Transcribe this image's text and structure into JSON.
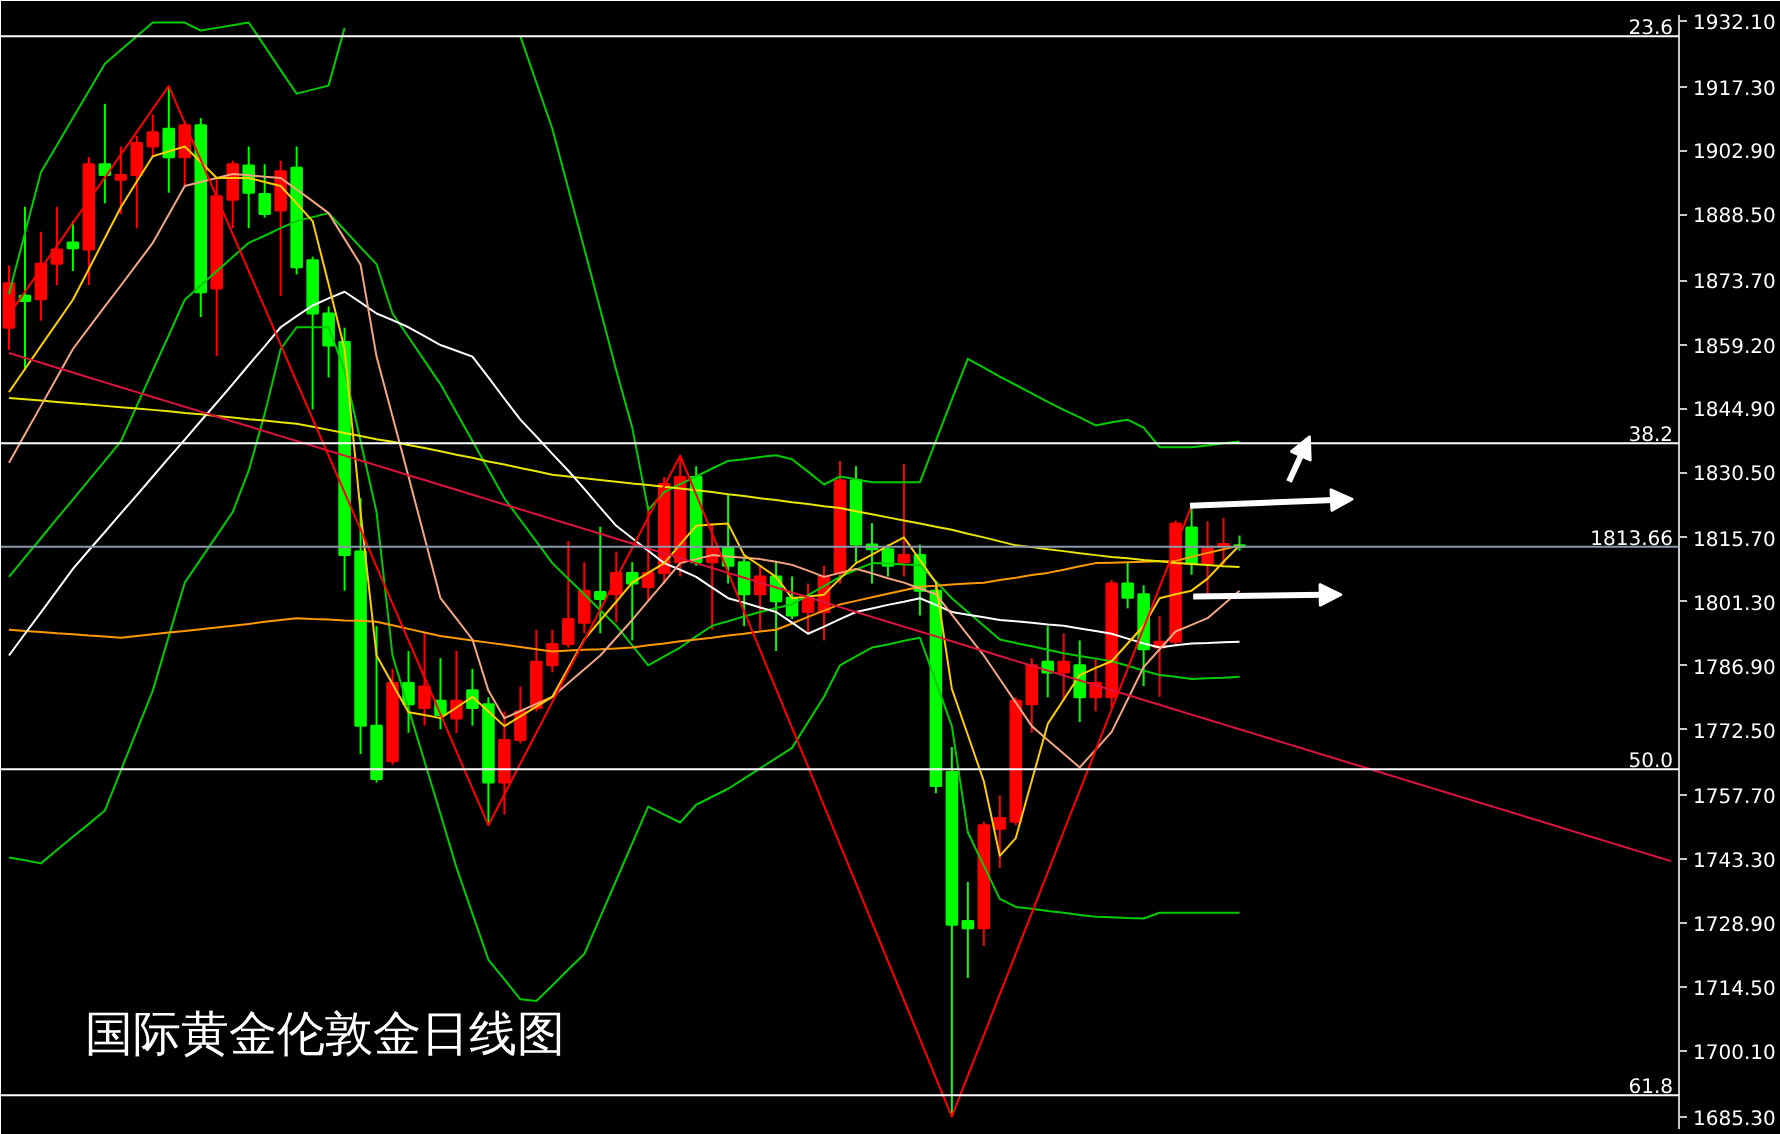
{
  "chart_data": {
    "type": "candlestick",
    "title": "国际黄金伦敦金日线图",
    "categories": [
      null,
      null,
      null,
      null,
      null,
      null,
      null,
      null,
      null,
      null,
      null,
      null,
      null,
      null,
      null,
      null,
      null,
      null,
      null,
      null,
      null,
      null,
      null,
      null,
      null,
      null,
      null,
      null,
      null,
      null,
      null,
      null,
      null,
      null,
      null,
      null,
      null,
      null,
      null,
      null,
      null,
      null,
      null,
      null,
      null,
      null,
      null,
      null,
      null,
      null,
      null,
      null,
      null,
      null,
      null,
      null,
      null,
      null,
      null,
      null,
      null,
      null,
      null,
      null,
      null,
      null,
      null,
      null,
      null,
      null,
      null,
      null,
      null,
      null,
      null,
      null,
      null,
      null,
      null,
      null,
      null,
      null,
      null,
      null,
      null,
      null,
      null,
      null,
      null,
      null,
      null,
      null,
      null,
      null,
      null,
      null,
      null,
      null,
      null,
      null,
      null,
      null,
      null,
      null,
      null
    ],
    "ohlc": [
      [
        1863.0,
        1877.0,
        1858.0,
        1873.0
      ],
      [
        1870.2,
        1890.2,
        1853.4,
        1869.0
      ],
      [
        1869.4,
        1884.6,
        1864.6,
        1877.4
      ],
      [
        1877.4,
        1890.2,
        1872.6,
        1880.6
      ],
      [
        1882.2,
        1887.0,
        1875.8,
        1880.9
      ],
      [
        1880.6,
        1901.4,
        1872.6,
        1899.8
      ],
      [
        1899.8,
        1913.4,
        1891.0,
        1897.4
      ],
      [
        1896.3,
        1903.8,
        1888.6,
        1897.4
      ],
      [
        1897.4,
        1906.2,
        1885.4,
        1904.6
      ],
      [
        1903.8,
        1911.0,
        1901.4,
        1907.0
      ],
      [
        1907.8,
        1917.4,
        1893.4,
        1901.4
      ],
      [
        1901.4,
        1909.4,
        1895.0,
        1908.6
      ],
      [
        1908.6,
        1910.2,
        1865.4,
        1871.0
      ],
      [
        1871.8,
        1896.6,
        1856.6,
        1892.6
      ],
      [
        1891.8,
        1900.6,
        1885.4,
        1899.8
      ],
      [
        1899.5,
        1903.8,
        1885.4,
        1893.4
      ],
      [
        1893.1,
        1899.8,
        1887.8,
        1888.6
      ],
      [
        1889.4,
        1900.6,
        1870.2,
        1898.2
      ],
      [
        1899.0,
        1903.8,
        1875.0,
        1876.6
      ],
      [
        1878.2,
        1879.0,
        1844.6,
        1866.2
      ],
      [
        1866.2,
        1867.8,
        1851.8,
        1859.0
      ],
      [
        1859.8,
        1863.0,
        1803.8,
        1811.8
      ],
      [
        1812.6,
        1824.6,
        1767.0,
        1773.4
      ],
      [
        1773.4,
        1795.8,
        1760.6,
        1761.4
      ],
      [
        1765.4,
        1786.2,
        1764.6,
        1783.0
      ],
      [
        1783.0,
        1790.2,
        1771.8,
        1778.2
      ],
      [
        1777.4,
        1794.2,
        1773.4,
        1782.2
      ],
      [
        1779.0,
        1788.6,
        1772.6,
        1775.8
      ],
      [
        1775.0,
        1790.2,
        1771.8,
        1779.0
      ],
      [
        1781.4,
        1786.2,
        1773.4,
        1777.4
      ],
      [
        1778.2,
        1779.8,
        1751.0,
        1760.6
      ],
      [
        1760.6,
        1776.6,
        1753.4,
        1770.2
      ],
      [
        1770.2,
        1782.2,
        1769.4,
        1776.6
      ],
      [
        1777.4,
        1795.0,
        1776.6,
        1787.8
      ],
      [
        1787.0,
        1795.0,
        1785.4,
        1791.8
      ],
      [
        1791.8,
        1815.0,
        1791.0,
        1797.4
      ],
      [
        1796.6,
        1810.2,
        1794.2,
        1803.8
      ],
      [
        1803.5,
        1818.2,
        1794.2,
        1801.9
      ],
      [
        1803.0,
        1812.6,
        1796.6,
        1807.8
      ],
      [
        1807.8,
        1810.2,
        1792.6,
        1805.4
      ],
      [
        1804.6,
        1823.0,
        1801.4,
        1807.8
      ],
      [
        1807.8,
        1829.4,
        1805.4,
        1827.8
      ],
      [
        1810.2,
        1834.2,
        1807.0,
        1829.4
      ],
      [
        1829.4,
        1831.8,
        1809.4,
        1810.2
      ],
      [
        1810.2,
        1819.0,
        1795.0,
        1813.4
      ],
      [
        1813.4,
        1825.4,
        1805.4,
        1809.4
      ],
      [
        1810.2,
        1811.0,
        1795.8,
        1803.0
      ],
      [
        1803.0,
        1809.4,
        1795.0,
        1807.0
      ],
      [
        1807.0,
        1810.2,
        1790.2,
        1801.4
      ],
      [
        1802.2,
        1807.0,
        1797.4,
        1798.2
      ],
      [
        1799.0,
        1805.4,
        1794.2,
        1802.2
      ],
      [
        1799.0,
        1809.4,
        1792.6,
        1807.0
      ],
      [
        1807.8,
        1833.0,
        1805.4,
        1828.6
      ],
      [
        1828.6,
        1831.8,
        1810.2,
        1814.2
      ],
      [
        1814.2,
        1819.0,
        1805.4,
        1813.1
      ],
      [
        1813.1,
        1814.2,
        1807.0,
        1809.4
      ],
      [
        1810.2,
        1832.3,
        1807.0,
        1811.8
      ],
      [
        1811.8,
        1814.2,
        1798.2,
        1803.8
      ],
      [
        1803.8,
        1804.6,
        1758.2,
        1759.8
      ],
      [
        1763.0,
        1768.6,
        1685.4,
        1728.6
      ],
      [
        1729.4,
        1738.2,
        1716.6,
        1727.8
      ],
      [
        1727.8,
        1751.8,
        1723.8,
        1751.0
      ],
      [
        1750.2,
        1757.7,
        1741.4,
        1752.6
      ],
      [
        1751.8,
        1779.8,
        1751.0,
        1779.0
      ],
      [
        1778.2,
        1788.6,
        1771.8,
        1787.0
      ],
      [
        1787.8,
        1795.8,
        1779.8,
        1785.4
      ],
      [
        1785.4,
        1794.2,
        1779.0,
        1787.8
      ],
      [
        1787.0,
        1792.6,
        1774.2,
        1779.8
      ],
      [
        1779.8,
        1788.6,
        1776.6,
        1783.0
      ],
      [
        1779.8,
        1806.2,
        1777.4,
        1805.4
      ],
      [
        1805.4,
        1810.2,
        1799.8,
        1802.2
      ],
      [
        1803.0,
        1805.0,
        1782.3,
        1790.6
      ],
      [
        1791.0,
        1798.1,
        1779.9,
        1792.3
      ],
      [
        1792.3,
        1819.6,
        1791.5,
        1818.9
      ],
      [
        1818.0,
        1822.9,
        1807.4,
        1809.9
      ],
      [
        1809.9,
        1819.4,
        1802.2,
        1813.3
      ],
      [
        1813.7,
        1820.2,
        1809.6,
        1814.3
      ],
      [
        1814.0,
        1816.2,
        1812.8,
        1813.66
      ],
      null,
      null,
      null,
      null,
      null,
      null,
      null,
      null,
      null,
      null,
      null,
      null,
      null,
      null,
      null,
      null,
      null,
      null,
      null,
      null,
      null,
      null,
      null,
      null,
      null,
      null,
      null
    ],
    "colors": [
      "#ff0000",
      "#00ff00",
      "#ff0000",
      "#ff0000",
      "#00ff00",
      "#ff0000",
      "#00ff00",
      "#ff0000",
      "#ff0000",
      "#ff0000",
      "#00ff00",
      "#ff0000",
      "#00ff00",
      "#ff0000",
      "#ff0000",
      "#00ff00",
      "#00ff00",
      "#ff0000",
      "#00ff00",
      "#00ff00",
      "#00ff00",
      "#00ff00",
      "#00ff00",
      "#00ff00",
      "#ff0000",
      "#00ff00",
      "#ff0000",
      "#00ff00",
      "#ff0000",
      "#00ff00",
      "#00ff00",
      "#ff0000",
      "#ff0000",
      "#ff0000",
      "#ff0000",
      "#ff0000",
      "#ff0000",
      "#00ff00",
      "#ff0000",
      "#00ff00",
      "#ff0000",
      "#ff0000",
      "#ff0000",
      "#00ff00",
      "#ff0000",
      "#00ff00",
      "#00ff00",
      "#ff0000",
      "#00ff00",
      "#00ff00",
      "#ff0000",
      "#ff0000",
      "#ff0000",
      "#00ff00",
      "#00ff00",
      "#00ff00",
      "#ff0000",
      "#00ff00",
      "#00ff00",
      "#00ff00",
      "#00ff00",
      "#ff0000",
      "#ff0000",
      "#ff0000",
      "#ff0000",
      "#00ff00",
      "#ff0000",
      "#00ff00",
      "#ff0000",
      "#ff0000",
      "#00ff00",
      "#00ff00",
      "#ff0000",
      "#ff0000",
      "#00ff00",
      "#ff0000",
      "#ff0000",
      "#00ff00",
      null,
      null,
      null,
      null,
      null,
      null,
      null,
      null,
      null,
      null,
      null,
      null,
      null,
      null,
      null,
      null,
      null,
      null,
      null,
      null,
      null,
      null,
      null,
      null,
      null,
      null,
      null
    ],
    "series": [
      {
        "type": "line",
        "color": "#00cc00",
        "values": [
          1870.6,
          1884.3,
          1898.0,
          1904.1,
          1910.2,
          1916.3,
          1922.4,
          1925.5,
          1928.6,
          1931.7,
          1931.7,
          1931.7,
          1929.9,
          1930.5,
          1931.1,
          1931.7,
          1926.4,
          1921.0,
          1915.7,
          1916.6,
          1917.5,
          1930.5,
          null,
          null,
          null,
          null,
          null,
          null,
          null,
          null,
          null,
          null,
          1928.6,
          1918.2,
          1907.8,
          1894.3,
          1880.8,
          1867.1,
          1853.4,
          1840.5,
          1822.0,
          1826.0,
          1827.8,
          1829.5,
          1831.3,
          1833.0,
          1833.4,
          1833.9,
          1834.3,
          1833.4,
          1830.6,
          1827.7,
          1829.5,
          1828.9,
          1828.2,
          1828.2,
          1828.2,
          1828.2,
          1837.5,
          1846.8,
          1856.0,
          1854.0,
          1852.0,
          1850.1,
          1848.2,
          1846.3,
          1844.5,
          1842.8,
          1841.0,
          1841.7,
          1842.3,
          1840.5,
          1836.1,
          1836.1,
          1836.1,
          1836.5,
          1837.0,
          1837.4,
          null,
          null,
          null,
          null,
          null,
          null,
          null,
          null,
          null,
          null,
          null,
          null,
          null,
          null,
          null,
          null,
          null,
          null,
          null,
          null,
          null,
          null,
          null,
          null,
          null,
          null,
          null
        ]
      },
      {
        "type": "line",
        "color": "#00cc00",
        "values": [
          1806.9,
          1811.3,
          1815.6,
          1820.0,
          1824.3,
          1828.7,
          1833.0,
          1837.4,
          1845.4,
          1853.4,
          1861.3,
          1869.3,
          1872.5,
          1875.7,
          1878.9,
          1882.1,
          1883.7,
          1885.4,
          1887.0,
          1887.9,
          1888.8,
          1885.0,
          1881.1,
          1877.3,
          1866.2,
          1860.9,
          1855.6,
          1850.3,
          1843.9,
          1837.5,
          1831.0,
          1824.6,
          1819.7,
          1814.9,
          1810.0,
          1806.5,
          1803.0,
          1799.4,
          1795.9,
          1791.5,
          1787.0,
          1789.0,
          1791.0,
          1793.5,
          1795.9,
          1796.9,
          1798.0,
          1799.0,
          1799.9,
          1800.7,
          1802.8,
          1804.8,
          1806.9,
          1808.5,
          1810.0,
          1809.9,
          1809.7,
          1809.6,
          1805.9,
          1802.1,
          1799.0,
          1795.9,
          1792.8,
          1792.0,
          1791.3,
          1790.5,
          1789.7,
          1789.1,
          1788.5,
          1787.9,
          1786.9,
          1785.8,
          1784.8,
          1784.4,
          1783.9,
          1784.1,
          1784.2,
          1784.4,
          null,
          null,
          null,
          null,
          null,
          null,
          null,
          null,
          null,
          null,
          null,
          null,
          null,
          null,
          null,
          null,
          null,
          null,
          null,
          null,
          null,
          null,
          null,
          null,
          null,
          null,
          null
        ]
      },
      {
        "type": "line",
        "color": "#00cc00",
        "values": [
          1743.7,
          1743.1,
          1742.4,
          1745.4,
          1748.4,
          1751.3,
          1754.3,
          1763.3,
          1772.3,
          1781.3,
          1793.5,
          1805.6,
          1810.9,
          1816.2,
          1821.5,
          1830.8,
          1843.6,
          1858.2,
          1863.1,
          1863.1,
          1863.1,
          1853.4,
          1837.5,
          1821.5,
          1789.2,
          1777.3,
          1765.4,
          1753.5,
          1741.5,
          1731.1,
          1720.7,
          1716.3,
          1711.8,
          1711.4,
          1714.9,
          1718.5,
          1722.0,
          1730.3,
          1738.6,
          1746.9,
          1755.2,
          1753.4,
          1751.6,
          1755.6,
          1757.4,
          1759.2,
          1761.5,
          1763.8,
          1766.1,
          1768.4,
          1774.2,
          1779.9,
          1787.0,
          1789.0,
          1791.0,
          1791.7,
          1792.5,
          1793.2,
          1783.3,
          1773.3,
          1749.4,
          1741.9,
          1734.4,
          1732.6,
          1732.2,
          1731.7,
          1731.3,
          1730.8,
          1730.4,
          1730.3,
          1730.1,
          1730.0,
          1731.3,
          1731.3,
          1731.3,
          1731.3,
          1731.3,
          1731.3,
          null,
          null,
          null,
          null,
          null,
          null,
          null,
          null,
          null,
          null,
          null,
          null,
          null,
          null,
          null,
          null,
          null,
          null,
          null,
          null,
          null,
          null,
          null,
          null,
          null,
          null,
          null
        ]
      },
      {
        "type": "line",
        "color": "#ff9900",
        "values": [
          1795.0,
          1794.7,
          1794.5,
          1794.2,
          1794.0,
          1793.7,
          1793.5,
          1793.2,
          1793.6,
          1794.0,
          1794.4,
          1794.7,
          1795.1,
          1795.5,
          1795.9,
          1796.3,
          1796.8,
          1797.2,
          1797.6,
          1797.4,
          1797.3,
          1797.1,
          1797.0,
          1796.8,
          1796.0,
          1795.2,
          1794.4,
          1793.6,
          1793.1,
          1792.6,
          1792.1,
          1791.6,
          1791.1,
          1790.6,
          1790.1,
          1790.3,
          1790.5,
          1790.6,
          1790.8,
          1791.0,
          1791.5,
          1791.9,
          1792.4,
          1792.8,
          1793.2,
          1793.7,
          1794.1,
          1794.6,
          1795.0,
          1796.4,
          1797.9,
          1799.3,
          1800.7,
          1801.5,
          1802.3,
          1803.1,
          1803.9,
          1804.7,
          1804.9,
          1805.2,
          1805.4,
          1805.6,
          1806.2,
          1806.7,
          1807.3,
          1807.8,
          1808.5,
          1809.3,
          1810.0,
          1810.1,
          1810.2,
          1810.3,
          1810.4,
          1810.5,
          1811.4,
          1812.3,
          1813.1,
          1814.0,
          null,
          null,
          null,
          null,
          null,
          null,
          null,
          null,
          null,
          null,
          null,
          null,
          null,
          null,
          null,
          null,
          null,
          null,
          null,
          null,
          null,
          null,
          null,
          null,
          null,
          null,
          null
        ]
      },
      {
        "type": "line",
        "color": "#e6e600",
        "values": [
          1847.2,
          1846.9,
          1846.6,
          1846.3,
          1846.0,
          1845.7,
          1845.4,
          1845.1,
          1844.8,
          1844.5,
          1844.2,
          1843.8,
          1843.5,
          1843.1,
          1842.8,
          1842.4,
          1842.1,
          1841.7,
          1841.4,
          1840.7,
          1840.0,
          1839.3,
          1838.6,
          1837.9,
          1837.3,
          1836.6,
          1835.9,
          1835.2,
          1834.4,
          1833.7,
          1832.9,
          1832.2,
          1831.4,
          1830.7,
          1829.9,
          1829.5,
          1829.1,
          1828.7,
          1828.3,
          1827.9,
          1827.6,
          1827.2,
          1826.8,
          1826.4,
          1826.0,
          1825.5,
          1825.1,
          1824.6,
          1824.2,
          1823.7,
          1823.3,
          1822.8,
          1822.4,
          1821.7,
          1821.0,
          1820.3,
          1819.6,
          1818.9,
          1818.2,
          1817.5,
          1816.6,
          1815.8,
          1814.9,
          1814.0,
          1813.6,
          1813.1,
          1812.7,
          1812.2,
          1811.8,
          1811.4,
          1811.1,
          1810.7,
          1810.4,
          1810.0,
          1809.8,
          1809.6,
          1809.3,
          1809.1,
          null,
          null,
          null,
          null,
          null,
          null,
          null,
          null,
          null,
          null,
          null,
          null,
          null,
          null,
          null,
          null,
          null,
          null,
          null,
          null,
          null,
          null,
          null,
          null,
          null,
          null,
          null
        ]
      },
      {
        "type": "line",
        "color": "#ffffff",
        "values": [
          1789.2,
          1794.1,
          1798.9,
          1803.8,
          1808.7,
          1812.9,
          1817.0,
          1821.2,
          1825.3,
          1829.5,
          1833.7,
          1837.8,
          1842.0,
          1846.1,
          1850.3,
          1854.6,
          1858.8,
          1863.1,
          1865.6,
          1868.0,
          1869.6,
          1871.1,
          1868.7,
          1866.2,
          1864.7,
          1863.1,
          1861.1,
          1859.1,
          1857.8,
          1856.5,
          1851.8,
          1847.0,
          1842.3,
          1838.5,
          1834.6,
          1830.8,
          1826.7,
          1822.5,
          1818.4,
          1815.6,
          1812.8,
          1810.0,
          1808.5,
          1806.9,
          1804.5,
          1802.1,
          1801.1,
          1800.0,
          1799.0,
          1796.6,
          1794.1,
          1795.7,
          1797.4,
          1799.0,
          1799.8,
          1800.6,
          1801.3,
          1802.1,
          1800.6,
          1799.0,
          1798.4,
          1797.8,
          1797.2,
          1796.9,
          1796.6,
          1796.2,
          1795.9,
          1795.3,
          1794.7,
          1794.1,
          1793.0,
          1791.9,
          1791.0,
          1791.5,
          1791.9,
          1792.0,
          1792.2,
          1792.3,
          null,
          null,
          null,
          null,
          null,
          null,
          null,
          null,
          null,
          null,
          null,
          null,
          null,
          null,
          null,
          null,
          null,
          null,
          null,
          null,
          null,
          null,
          null,
          null,
          null,
          null,
          null
        ]
      },
      {
        "type": "line",
        "color": "#f4a582",
        "values": [
          1832.6,
          1839.0,
          1845.4,
          1851.8,
          1858.2,
          1863.0,
          1867.8,
          1872.5,
          1877.3,
          1882.1,
          1888.5,
          1894.9,
          1895.8,
          1896.7,
          1897.6,
          1897.3,
          1897.0,
          1896.7,
          1894.1,
          1891.5,
          1888.8,
          1883.0,
          1877.2,
          1856.5,
          1843.0,
          1829.5,
          1815.8,
          1802.1,
          1797.5,
          1792.8,
          1781.3,
          1775.1,
          1776.7,
          1778.3,
          1779.9,
          1783.0,
          1786.1,
          1789.2,
          1793.2,
          1797.2,
          1801.5,
          1805.7,
          1810.0,
          1810.9,
          1811.8,
          1811.5,
          1811.2,
          1810.9,
          1810.3,
          1809.6,
          1808.3,
          1806.9,
          1807.8,
          1808.7,
          1807.7,
          1806.6,
          1805.6,
          1804.3,
          1803.0,
          1798.4,
          1793.8,
          1789.2,
          1783.9,
          1778.6,
          1773.3,
          1770.2,
          1767.1,
          1764.0,
          1768.0,
          1772.0,
          1779.3,
          1786.6,
          1790.6,
          1794.6,
          1796.1,
          1797.6,
          1800.7,
          1803.8,
          null,
          null,
          null,
          null,
          null,
          null,
          null,
          null,
          null,
          null,
          null,
          null,
          null,
          null,
          null,
          null,
          null,
          null,
          null,
          null,
          null,
          null,
          null,
          null,
          null,
          null,
          null
        ]
      },
      {
        "type": "line",
        "color": "#ffcc00",
        "values": [
          1848.5,
          1853.7,
          1858.9,
          1864.1,
          1869.3,
          1876.2,
          1883.2,
          1890.1,
          1895.9,
          1901.6,
          1902.7,
          1903.8,
          1900.3,
          1896.7,
          1896.7,
          1896.7,
          1895.8,
          1894.9,
          1891.0,
          1887.0,
          1872.8,
          1858.2,
          1821.5,
          1789.2,
          1782.8,
          1776.4,
          1775.8,
          1775.1,
          1777.5,
          1779.9,
          1776.6,
          1773.3,
          1775.5,
          1777.7,
          1779.9,
          1786.4,
          1792.8,
          1797.1,
          1801.3,
          1805.6,
          1807.8,
          1810.0,
          1814.2,
          1818.4,
          1818.7,
          1818.9,
          1811.8,
          1809.4,
          1806.9,
          1802.1,
          1802.5,
          1802.9,
          1806.5,
          1810.0,
          1811.9,
          1813.9,
          1815.8,
          1810.7,
          1805.6,
          1781.7,
          1771.3,
          1760.9,
          1744.1,
          1748.1,
          1761.0,
          1773.8,
          1779.3,
          1784.8,
          1786.4,
          1787.9,
          1791.9,
          1795.9,
          1802.1,
          1803.0,
          1803.8,
          1806.5,
          1810.3,
          1814.0,
          null,
          null,
          null,
          null,
          null,
          null,
          null,
          null,
          null,
          null,
          null,
          null,
          null,
          null,
          null,
          null,
          null,
          null,
          null,
          null,
          null,
          null,
          null,
          null,
          null,
          null,
          null
        ]
      },
      {
        "type": "line",
        "color": "#dc143c",
        "values": [
          1857.3,
          1856.2,
          1855.1,
          1854.0,
          1852.9,
          1851.8,
          1850.7,
          1849.6,
          1848.5,
          1847.4,
          1846.3,
          1845.2,
          1844.1,
          1843.0,
          1841.9,
          1840.8,
          1839.7,
          1838.6,
          1837.5,
          1836.4,
          1835.3,
          1834.2,
          1833.1,
          1832.0,
          1830.9,
          1829.8,
          1828.7,
          1827.6,
          1826.5,
          1825.4,
          1824.3,
          1823.2,
          1822.1,
          1821.0,
          1819.9,
          1818.8,
          1817.7,
          1816.6,
          1815.5,
          1814.4,
          1813.3,
          1812.2,
          1811.1,
          1810.0,
          1808.9,
          1807.8,
          1806.7,
          1805.6,
          1804.5,
          1803.4,
          1802.3,
          1801.2,
          1800.1,
          1799.0,
          1797.9,
          1796.8,
          1795.7,
          1794.6,
          1793.5,
          1792.4,
          1791.3,
          1790.2,
          1789.1,
          1788.0,
          1786.9,
          1785.8,
          1784.7,
          1783.6,
          1782.5,
          1781.4,
          1780.3,
          1779.2,
          1778.1,
          1777.0,
          1775.9,
          1774.8,
          1773.7,
          1772.6,
          1771.5,
          1770.4,
          1769.3,
          1768.2,
          1767.1,
          1766.0,
          1764.9,
          1763.8,
          1762.7,
          1761.6,
          1760.5,
          1759.4,
          1758.3,
          1757.2,
          1756.1,
          1755.0,
          1753.9,
          1752.8,
          1751.7,
          1750.6,
          1749.5,
          1748.4,
          1747.3,
          1746.2,
          1745.1,
          1744.0,
          1742.9
        ]
      },
      {
        "type": "line",
        "color": "#ff0000",
        "values": [
          1866.0,
          1871.1,
          1876.3,
          1881.4,
          1886.6,
          1891.7,
          1896.8,
          1902.0,
          1907.1,
          1912.3,
          1917.4,
          1909.1,
          1900.8,
          1892.4,
          1884.1,
          1875.8,
          1867.5,
          1859.2,
          1850.8,
          1842.5,
          1834.2,
          1825.9,
          1817.6,
          1809.2,
          1800.9,
          1792.6,
          1784.3,
          1776.0,
          1767.6,
          1759.3,
          1751.0,
          1757.9,
          1764.9,
          1771.8,
          1778.7,
          1785.7,
          1792.6,
          1799.5,
          1806.5,
          1813.4,
          1820.3,
          1827.3,
          1834.2,
          1825.4,
          1816.7,
          1807.9,
          1799.2,
          1790.4,
          1781.7,
          1772.9,
          1764.2,
          1755.4,
          1746.7,
          1737.9,
          1729.2,
          1720.4,
          1711.7,
          1702.9,
          1694.1,
          1685.4,
          1694.6,
          1703.7,
          1712.9,
          1722.1,
          1731.2,
          1740.4,
          1749.6,
          1758.7,
          1767.9,
          1777.1,
          1786.2,
          1795.4,
          1804.6,
          1813.7,
          1822.9,
          null,
          null,
          null,
          null,
          null,
          null,
          null,
          null,
          null,
          null,
          null,
          null,
          null,
          null,
          null,
          null,
          null,
          null,
          null,
          null,
          null,
          null,
          null,
          null,
          null,
          null,
          null,
          null,
          null,
          null
        ]
      }
    ],
    "ylim": [
      1682.6,
      1933.4
    ],
    "yticks": [
      {
        "value": 1685.3,
        "label": "1685.30"
      },
      {
        "value": 1700.1,
        "label": "1700.10"
      },
      {
        "value": 1714.5,
        "label": "1714.50"
      },
      {
        "value": 1728.9,
        "label": "1728.90"
      },
      {
        "value": 1743.3,
        "label": "1743.30"
      },
      {
        "value": 1757.7,
        "label": "1757.70"
      },
      {
        "value": 1772.5,
        "label": "1772.50"
      },
      {
        "value": 1786.9,
        "label": "1786.90"
      },
      {
        "value": 1801.3,
        "label": "1801.30"
      },
      {
        "value": 1815.7,
        "label": "1815.70"
      },
      {
        "value": 1830.5,
        "label": "1830.50"
      },
      {
        "value": 1844.9,
        "label": "1844.90"
      },
      {
        "value": 1859.2,
        "label": "1859.20"
      },
      {
        "value": 1873.7,
        "label": "1873.70"
      },
      {
        "value": 1888.5,
        "label": "1888.50"
      },
      {
        "value": 1902.9,
        "label": "1902.90"
      },
      {
        "value": 1917.3,
        "label": "1917.30"
      },
      {
        "value": 1932.1,
        "label": "1932.10"
      }
    ],
    "ref_lines": [
      {
        "axis": "y",
        "value": 1928.6,
        "color": "#ffffff"
      },
      {
        "axis": "y",
        "value": 1837.0,
        "color": "#ffffff"
      },
      {
        "axis": "y",
        "value": 1763.6,
        "color": "#ffffff"
      },
      {
        "axis": "y",
        "value": 1690.2,
        "color": "#ffffff"
      },
      {
        "axis": "y",
        "value": 1813.66,
        "label": "1813.66",
        "color": "#8a9aaa"
      }
    ],
    "annotations": [
      {
        "text": "23.6",
        "y": 1928.6
      },
      {
        "text": "38.2",
        "y": 1837.0
      },
      {
        "text": "50.0",
        "y": 1763.6
      },
      {
        "text": "61.8",
        "y": 1690.2
      }
    ],
    "tick_labels": "y"
  }
}
